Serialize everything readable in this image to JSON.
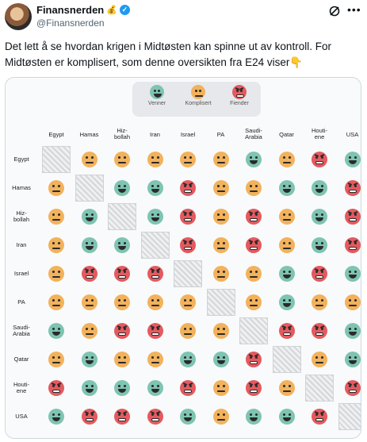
{
  "author": {
    "name": "Finansnerden",
    "name_emoji": "💰",
    "handle": "@Finansnerden"
  },
  "tweet": {
    "text": "Det lett å se hvordan krigen i Midtøsten kan spinne ut av kontroll. For Midtøsten er komplisert, som denne oversikten fra E24 viser👇"
  },
  "icons": {
    "verified": "verified-badge-icon",
    "grok": "grok-icon",
    "more": "more-icon"
  },
  "colors": {
    "venner": "#7ec4b2",
    "komplisert": "#f2b25c",
    "fiender": "#e35a5f"
  },
  "legend": [
    {
      "key": "venner",
      "label": "Venner"
    },
    {
      "key": "komplisert",
      "label": "Komplisert"
    },
    {
      "key": "fiender",
      "label": "Fiender"
    }
  ],
  "countries": [
    "Egypt",
    "Hamas",
    "Hiz-\nbollah",
    "Iran",
    "Israel",
    "PA",
    "Saudi-\nArabia",
    "Qatar",
    "Houti-\nene",
    "USA"
  ],
  "matrix": [
    [
      "-",
      "K",
      "K",
      "K",
      "K",
      "K",
      "V",
      "K",
      "F",
      "V"
    ],
    [
      "K",
      "-",
      "V",
      "V",
      "F",
      "K",
      "K",
      "V",
      "V",
      "F"
    ],
    [
      "K",
      "V",
      "-",
      "V",
      "F",
      "K",
      "F",
      "K",
      "V",
      "F"
    ],
    [
      "K",
      "V",
      "V",
      "-",
      "F",
      "K",
      "F",
      "K",
      "V",
      "F"
    ],
    [
      "K",
      "F",
      "F",
      "F",
      "-",
      "K",
      "K",
      "V",
      "F",
      "V"
    ],
    [
      "K",
      "K",
      "K",
      "K",
      "K",
      "-",
      "K",
      "V",
      "K",
      "K"
    ],
    [
      "V",
      "K",
      "F",
      "F",
      "K",
      "K",
      "-",
      "F",
      "F",
      "V"
    ],
    [
      "K",
      "V",
      "K",
      "K",
      "V",
      "V",
      "F",
      "-",
      "K",
      "V"
    ],
    [
      "F",
      "V",
      "V",
      "V",
      "F",
      "K",
      "F",
      "K",
      "-",
      "F"
    ],
    [
      "V",
      "F",
      "F",
      "F",
      "V",
      "K",
      "V",
      "V",
      "F",
      "-"
    ]
  ]
}
